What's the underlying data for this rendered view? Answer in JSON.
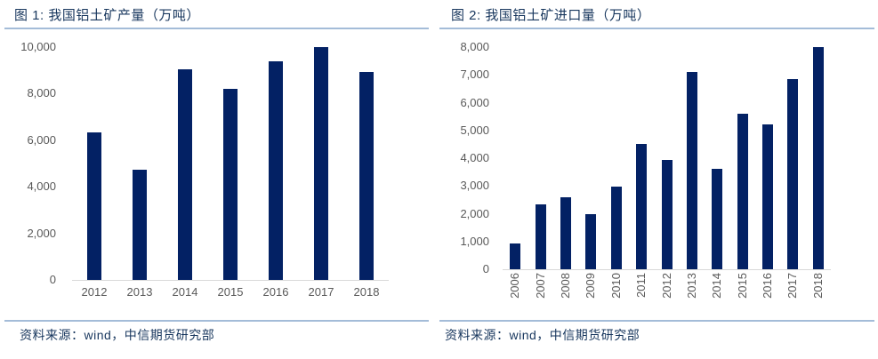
{
  "colors": {
    "bar": "#032164",
    "title_text": "#17365D",
    "tick_text": "#595959",
    "divider": "#A4BCD8",
    "axis_line": "#D9D9D9"
  },
  "panels": [
    {
      "source": "资料来源：wind，中信期货研究部"
    },
    {
      "source": "资料来源：wind，中信期货研究部"
    }
  ],
  "chart_data": [
    {
      "type": "bar",
      "title": "图 1: 我国铝土矿产量（万吨）",
      "categories": [
        "2012",
        "2013",
        "2014",
        "2015",
        "2016",
        "2017",
        "2018"
      ],
      "values": [
        6330,
        4730,
        9050,
        8200,
        9390,
        9990,
        8940
      ],
      "xlabel": "",
      "ylabel": "",
      "ylim": [
        0,
        10000
      ],
      "ytick_step": 2000,
      "grid": false,
      "legend_position": "none",
      "x_label_rotation": 0,
      "source": "资料来源：wind，中信期货研究部"
    },
    {
      "type": "bar",
      "title": "图 2: 我国铝土矿进口量（万吨）",
      "categories": [
        "2006",
        "2007",
        "2008",
        "2009",
        "2010",
        "2011",
        "2012",
        "2013",
        "2014",
        "2015",
        "2016",
        "2017",
        "2018"
      ],
      "values": [
        940,
        2330,
        2580,
        1990,
        2990,
        4500,
        3950,
        7090,
        3610,
        5600,
        5230,
        6850,
        7990
      ],
      "xlabel": "",
      "ylabel": "",
      "ylim": [
        0,
        8000
      ],
      "ytick_step": 1000,
      "grid": false,
      "legend_position": "none",
      "x_label_rotation": -90,
      "source": "资料来源：wind，中信期货研究部"
    }
  ]
}
